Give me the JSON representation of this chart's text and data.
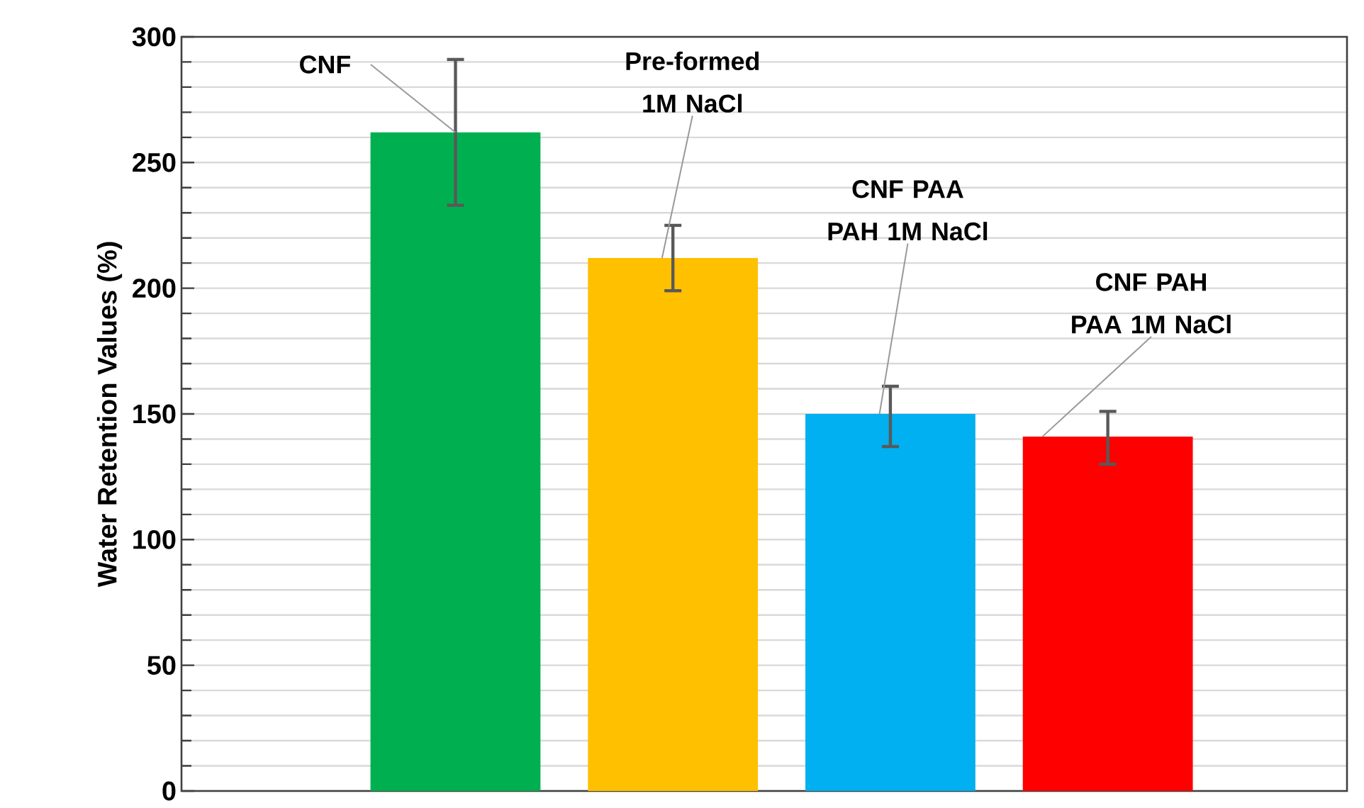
{
  "chart_data": {
    "type": "bar",
    "ylabel": "Water Retention Values (%)",
    "categories": [
      null,
      null,
      null,
      null
    ],
    "values": [
      262,
      212,
      150,
      141
    ],
    "colors": [
      "#00b050",
      "#ffc000",
      "#00b0f0",
      "#ff0000"
    ],
    "errors": [
      [
        233,
        291
      ],
      [
        199,
        225
      ],
      [
        137,
        161
      ],
      [
        130,
        151
      ]
    ],
    "ylim": [
      0,
      300
    ],
    "yticks": [
      0,
      50,
      100,
      150,
      200,
      250,
      300
    ],
    "grid": "y",
    "annotations": [
      "CNF",
      "Pre-formed 1M NaCl",
      "CNF PAA PAH 1M NaCl",
      "CNF PAH PAA 1M NaCl"
    ]
  }
}
